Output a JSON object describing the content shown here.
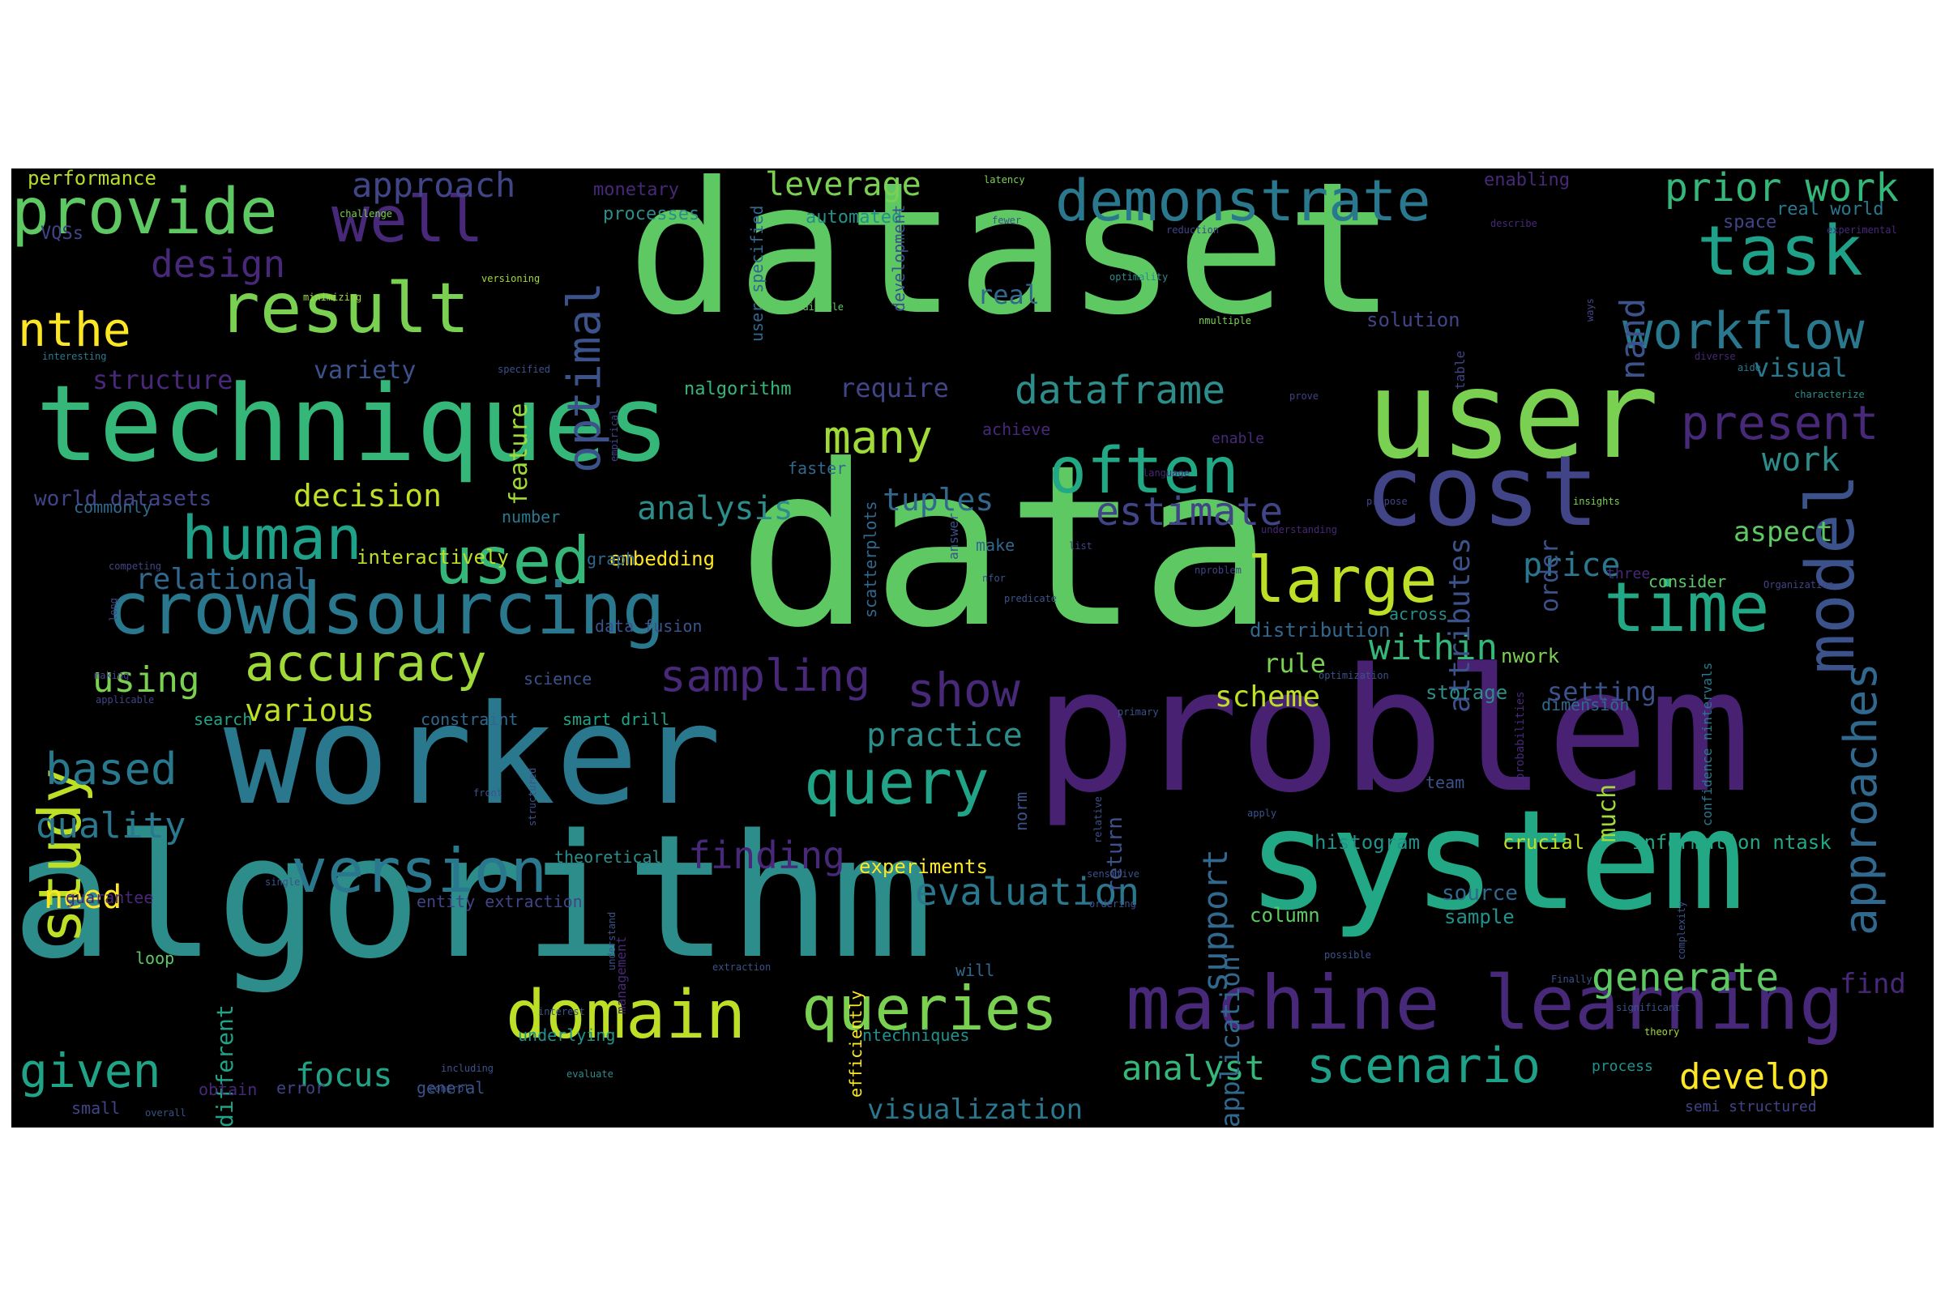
{
  "palette": {
    "background": "#000000",
    "page": "#ffffff"
  },
  "words": [
    {
      "text": "dataset",
      "color": "#5ec962"
    },
    {
      "text": "data",
      "color": "#5ec962"
    },
    {
      "text": "problem",
      "color": "#482173"
    },
    {
      "text": "algorithm",
      "color": "#2c8d8b"
    },
    {
      "text": "worker",
      "color": "#2a788e"
    },
    {
      "text": "system",
      "color": "#22a884"
    },
    {
      "text": "techniques",
      "color": "#35b779"
    },
    {
      "text": "user",
      "color": "#7ad151"
    },
    {
      "text": "cost",
      "color": "#414487"
    },
    {
      "text": "machine learning",
      "color": "#482878"
    },
    {
      "text": "crowdsourcing",
      "color": "#2a788e"
    },
    {
      "text": "model",
      "color": "#3b528b"
    },
    {
      "text": "provide",
      "color": "#5ec962"
    },
    {
      "text": "result",
      "color": "#7ad151"
    },
    {
      "text": "demonstrate",
      "color": "#2a788e"
    },
    {
      "text": "domain",
      "color": "#bddf26"
    },
    {
      "text": "queries",
      "color": "#7ad151"
    },
    {
      "text": "time",
      "color": "#22a884"
    },
    {
      "text": "query",
      "color": "#20a386"
    },
    {
      "text": "version",
      "color": "#2a788e"
    },
    {
      "text": "task",
      "color": "#1fa088"
    },
    {
      "text": "workflow",
      "color": "#2a788e"
    },
    {
      "text": "often",
      "color": "#22a884"
    },
    {
      "text": "human",
      "color": "#1fa088"
    },
    {
      "text": "used",
      "color": "#35b779"
    },
    {
      "text": "large",
      "color": "#bddf26"
    },
    {
      "text": "study",
      "color": "#bddf26"
    },
    {
      "text": "approaches",
      "color": "#31688e"
    },
    {
      "text": "accuracy",
      "color": "#a0da39"
    },
    {
      "text": "well",
      "color": "#482878"
    },
    {
      "text": "optimal",
      "color": "#3b528b"
    },
    {
      "text": "present",
      "color": "#482878"
    },
    {
      "text": "nthe",
      "color": "#fde725"
    },
    {
      "text": "given",
      "color": "#20a386"
    },
    {
      "text": "scenario",
      "color": "#1fa088"
    },
    {
      "text": "sampling",
      "color": "#482878"
    },
    {
      "text": "show",
      "color": "#482878"
    },
    {
      "text": "many",
      "color": "#a0da39"
    },
    {
      "text": "prior work",
      "color": "#35b779"
    },
    {
      "text": "dataframe",
      "color": "#2c8d8b"
    },
    {
      "text": "estimate",
      "color": "#414487"
    },
    {
      "text": "based",
      "color": "#2a788e"
    },
    {
      "text": "evaluation",
      "color": "#2a788e"
    },
    {
      "text": "finding",
      "color": "#482878"
    },
    {
      "text": "generate",
      "color": "#5ec962"
    },
    {
      "text": "approach",
      "color": "#414487"
    },
    {
      "text": "design",
      "color": "#482878"
    },
    {
      "text": "analysis",
      "color": "#2c8d8b"
    },
    {
      "text": "quality",
      "color": "#2a788e"
    },
    {
      "text": "within",
      "color": "#35b779"
    },
    {
      "text": "develop",
      "color": "#fde725"
    },
    {
      "text": "analyst",
      "color": "#35b779"
    },
    {
      "text": "leverage",
      "color": "#7ad151"
    },
    {
      "text": "tuples",
      "color": "#31688e"
    },
    {
      "text": "using",
      "color": "#7ad151"
    },
    {
      "text": "support",
      "color": "#31688e"
    },
    {
      "text": "price",
      "color": "#2a788e"
    },
    {
      "text": "focus",
      "color": "#20a386"
    },
    {
      "text": "need",
      "color": "#fde725"
    },
    {
      "text": "practice",
      "color": "#2c8d8b"
    },
    {
      "text": "decision",
      "color": "#bddf26"
    },
    {
      "text": "work",
      "color": "#2c8d8b"
    },
    {
      "text": "various",
      "color": "#bddf26"
    },
    {
      "text": "attributes",
      "color": "#3b528b"
    },
    {
      "text": "scheme",
      "color": "#bddf26"
    },
    {
      "text": "aspect",
      "color": "#5ec962"
    },
    {
      "text": "nand",
      "color": "#3b528b"
    },
    {
      "text": "relational",
      "color": "#31688e"
    },
    {
      "text": "visualization",
      "color": "#2a788e"
    },
    {
      "text": "much",
      "color": "#a0da39"
    },
    {
      "text": "find",
      "color": "#482878"
    },
    {
      "text": "require",
      "color": "#414487"
    },
    {
      "text": "structure",
      "color": "#482878"
    },
    {
      "text": "visual",
      "color": "#2a788e"
    },
    {
      "text": "real",
      "color": "#31688e"
    },
    {
      "text": "rule",
      "color": "#7ad151"
    },
    {
      "text": "setting",
      "color": "#3b528b"
    },
    {
      "text": "application",
      "color": "#31688e"
    },
    {
      "text": "variety",
      "color": "#3b528b"
    },
    {
      "text": "world datasets",
      "color": "#414487"
    },
    {
      "text": "return",
      "color": "#3b528b"
    },
    {
      "text": "order",
      "color": "#3b528b"
    },
    {
      "text": "experiments",
      "color": "#fde725"
    },
    {
      "text": "histogram",
      "color": "#21918c"
    },
    {
      "text": "information ntask",
      "color": "#22a884"
    },
    {
      "text": "crucial",
      "color": "#bddf26"
    },
    {
      "text": "different",
      "color": "#20a386"
    },
    {
      "text": "feature",
      "color": "#a0da39"
    },
    {
      "text": "interactively",
      "color": "#bddf26"
    },
    {
      "text": "embedding",
      "color": "#fde725"
    },
    {
      "text": "solution",
      "color": "#414487"
    },
    {
      "text": "distribution",
      "color": "#31688e"
    },
    {
      "text": "nwork",
      "color": "#7ad151"
    },
    {
      "text": "storage",
      "color": "#2c8d8b"
    },
    {
      "text": "source",
      "color": "#31688e"
    },
    {
      "text": "sample",
      "color": "#21918c"
    },
    {
      "text": "column",
      "color": "#5ec962"
    },
    {
      "text": "performance",
      "color": "#b5de2b"
    },
    {
      "text": "monetary",
      "color": "#482878"
    },
    {
      "text": "processes",
      "color": "#2c8d8b"
    },
    {
      "text": "automated",
      "color": "#21918c"
    },
    {
      "text": "enabling",
      "color": "#482878"
    },
    {
      "text": "real world",
      "color": "#2a788e"
    },
    {
      "text": "space",
      "color": "#414487"
    },
    {
      "text": "VQSs",
      "color": "#414487"
    },
    {
      "text": "nalgorithm",
      "color": "#35b779"
    },
    {
      "text": "user specified",
      "color": "#31688e"
    },
    {
      "text": "development",
      "color": "#3b528b"
    },
    {
      "text": "achieve",
      "color": "#482878"
    },
    {
      "text": "faster",
      "color": "#31688e"
    },
    {
      "text": "commonly",
      "color": "#31688e"
    },
    {
      "text": "number",
      "color": "#2a788e"
    },
    {
      "text": "graph",
      "color": "#31688e"
    },
    {
      "text": "make",
      "color": "#31688e"
    },
    {
      "text": "data fusion",
      "color": "#3b528b"
    },
    {
      "text": "scatterplots",
      "color": "#31688e"
    },
    {
      "text": "consider",
      "color": "#5ec962"
    },
    {
      "text": "three",
      "color": "#482878"
    },
    {
      "text": "confidence nintervals",
      "color": "#2a788e"
    },
    {
      "text": "across",
      "color": "#2c8d8b"
    },
    {
      "text": "dimension",
      "color": "#31688e"
    },
    {
      "text": "science",
      "color": "#3b528b"
    },
    {
      "text": "search",
      "color": "#20a386"
    },
    {
      "text": "constraint",
      "color": "#31688e"
    },
    {
      "text": "smart drill",
      "color": "#20a386"
    },
    {
      "text": "team",
      "color": "#3b528b"
    },
    {
      "text": "norm",
      "color": "#3b528b"
    },
    {
      "text": "theoretical",
      "color": "#2c8d8b"
    },
    {
      "text": "entity extraction",
      "color": "#414487"
    },
    {
      "text": "management",
      "color": "#482878"
    },
    {
      "text": "guarantee",
      "color": "#482878"
    },
    {
      "text": "loop",
      "color": "#5ec962"
    },
    {
      "text": "efficiently",
      "color": "#fde725"
    },
    {
      "text": "will",
      "color": "#31688e"
    },
    {
      "text": "underlying",
      "color": "#21918c"
    },
    {
      "text": "ntechniques",
      "color": "#21918c"
    },
    {
      "text": "general",
      "color": "#3b528b"
    },
    {
      "text": "error",
      "color": "#414487"
    },
    {
      "text": "obtain",
      "color": "#482878"
    },
    {
      "text": "small",
      "color": "#414487"
    },
    {
      "text": "process",
      "color": "#21918c"
    },
    {
      "text": "semi structured",
      "color": "#414487"
    },
    {
      "text": "probabilities",
      "color": "#482878"
    },
    {
      "text": "answer",
      "color": "#3b528b"
    },
    {
      "text": "enable",
      "color": "#482878"
    },
    {
      "text": "table",
      "color": "#414487"
    },
    {
      "text": "latency",
      "color": "#7ad151"
    },
    {
      "text": "challenge",
      "color": "#7ad151"
    },
    {
      "text": "fewer",
      "color": "#3b528b"
    },
    {
      "text": "reduction",
      "color": "#414487"
    },
    {
      "text": "describe",
      "color": "#482878"
    },
    {
      "text": "experimental",
      "color": "#482878"
    },
    {
      "text": "optimality",
      "color": "#2c8d8b"
    },
    {
      "text": "nmultiple",
      "color": "#7ad151"
    },
    {
      "text": "minimizing",
      "color": "#a0da39"
    },
    {
      "text": "versioning",
      "color": "#a0da39"
    },
    {
      "text": "interesting",
      "color": "#2a788e"
    },
    {
      "text": "specified",
      "color": "#3b528b"
    },
    {
      "text": "empirical",
      "color": "#414487"
    },
    {
      "text": "prove",
      "color": "#414487"
    },
    {
      "text": "ways",
      "color": "#414487"
    },
    {
      "text": "aide",
      "color": "#2a788e"
    },
    {
      "text": "diverse",
      "color": "#482878"
    },
    {
      "text": "characterize",
      "color": "#2c8d8b"
    },
    {
      "text": "available",
      "color": "#5ec962"
    },
    {
      "text": "insights",
      "color": "#7ad151"
    },
    {
      "text": "understanding",
      "color": "#482878"
    },
    {
      "text": "language",
      "color": "#482878"
    },
    {
      "text": "propose",
      "color": "#414487"
    },
    {
      "text": "list",
      "color": "#414487"
    },
    {
      "text": "nproblem",
      "color": "#414487"
    },
    {
      "text": "Organization",
      "color": "#414487"
    },
    {
      "text": "competing",
      "color": "#414487"
    },
    {
      "text": "long",
      "color": "#414487"
    },
    {
      "text": "making",
      "color": "#414487"
    },
    {
      "text": "applicable",
      "color": "#414487"
    },
    {
      "text": "nfor",
      "color": "#3b528b"
    },
    {
      "text": "predicate",
      "color": "#3b528b"
    },
    {
      "text": "optimization",
      "color": "#3b528b"
    },
    {
      "text": "primary",
      "color": "#3b528b"
    },
    {
      "text": "front",
      "color": "#3b528b"
    },
    {
      "text": "relative",
      "color": "#3b528b"
    },
    {
      "text": "apply",
      "color": "#3b528b"
    },
    {
      "text": "structured",
      "color": "#3b528b"
    },
    {
      "text": "ordering",
      "color": "#3b528b"
    },
    {
      "text": "single",
      "color": "#3b528b"
    },
    {
      "text": "understand",
      "color": "#3b528b"
    },
    {
      "text": "sensitive",
      "color": "#3b528b"
    },
    {
      "text": "complexity",
      "color": "#3b528b"
    },
    {
      "text": "possible",
      "color": "#3b528b"
    },
    {
      "text": "interest",
      "color": "#3b528b"
    },
    {
      "text": "extraction",
      "color": "#3b528b"
    },
    {
      "text": "Finally",
      "color": "#3b528b"
    },
    {
      "text": "significant",
      "color": "#3b528b"
    },
    {
      "text": "theory",
      "color": "#a0da39"
    },
    {
      "text": "including",
      "color": "#3b528b"
    },
    {
      "text": "control",
      "color": "#3b528b"
    },
    {
      "text": "evaluate",
      "color": "#2c8d8b"
    },
    {
      "text": "overall",
      "color": "#3b528b"
    }
  ]
}
